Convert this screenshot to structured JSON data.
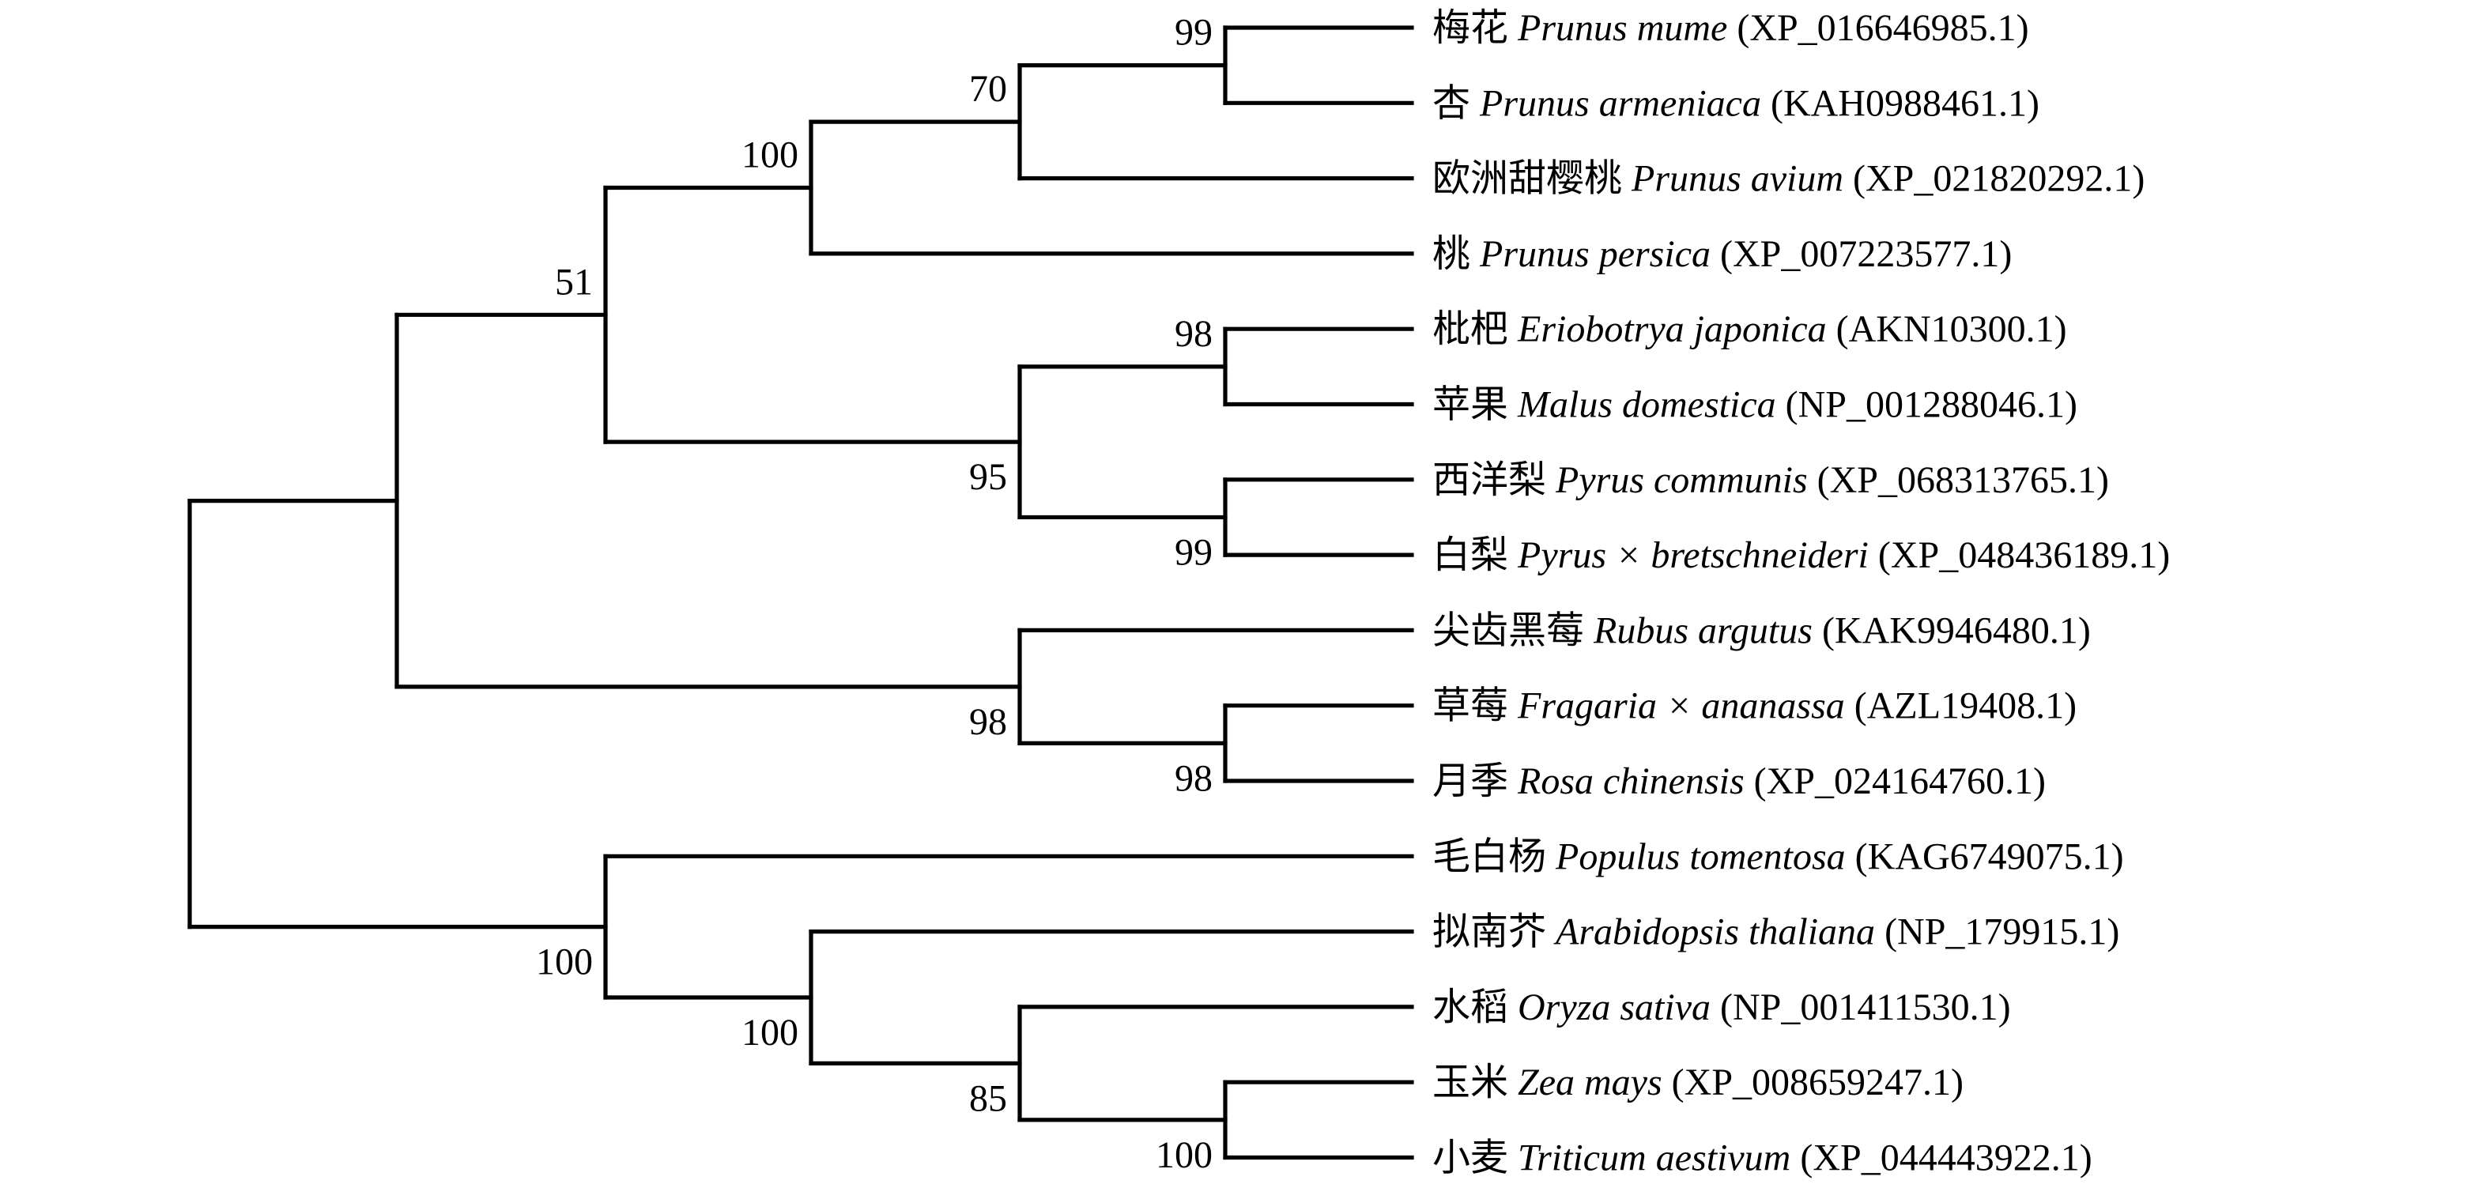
{
  "figure": {
    "type": "phylogenetic_tree",
    "background_color": "#ffffff",
    "line_color": "#000000",
    "text_color": "#000000",
    "taxa": [
      {
        "cn": "梅花",
        "sci": "Prunus mume",
        "acc": "(XP_016646985.1)"
      },
      {
        "cn": "杏",
        "sci": "Prunus armeniaca",
        "acc": "(KAH0988461.1)"
      },
      {
        "cn": "欧洲甜樱桃",
        "sci": "Prunus avium",
        "acc": "(XP_021820292.1)"
      },
      {
        "cn": "桃",
        "sci": "Prunus persica",
        "acc": "(XP_007223577.1)"
      },
      {
        "cn": "枇杷",
        "sci": "Eriobotrya japonica",
        "acc": "(AKN10300.1)"
      },
      {
        "cn": "苹果",
        "sci": "Malus domestica",
        "acc": "(NP_001288046.1)"
      },
      {
        "cn": "西洋梨",
        "sci": "Pyrus communis",
        "acc": "(XP_068313765.1)"
      },
      {
        "cn": "白梨",
        "sci": "Pyrus × bretschneideri",
        "acc": "(XP_048436189.1)"
      },
      {
        "cn": "尖齿黑莓",
        "sci": "Rubus argutus",
        "acc": "(KAK9946480.1)"
      },
      {
        "cn": "草莓",
        "sci": "Fragaria × ananassa",
        "acc": "(AZL19408.1)"
      },
      {
        "cn": "月季",
        "sci": "Rosa chinensis",
        "acc": "(XP_024164760.1)"
      },
      {
        "cn": "毛白杨",
        "sci": "Populus tomentosa",
        "acc": "(KAG6749075.1)"
      },
      {
        "cn": "拟南芥",
        "sci": "Arabidopsis thaliana",
        "acc": "(NP_179915.1)"
      },
      {
        "cn": "水稻",
        "sci": "Oryza sativa",
        "acc": "(NP_001411530.1)"
      },
      {
        "cn": "玉米",
        "sci": "Zea mays",
        "acc": "(XP_008659247.1)"
      },
      {
        "cn": "小麦",
        "sci": "Triticum aestivum",
        "acc": "(XP_044443922.1)"
      }
    ],
    "tree": {
      "children": [
        {
          "children": [
            {
              "support": 51,
              "children": [
                {
                  "support": 100,
                  "children": [
                    {
                      "support": 70,
                      "children": [
                        {
                          "support": 99,
                          "children": [
                            {
                              "leaf": 0
                            },
                            {
                              "leaf": 1
                            }
                          ]
                        },
                        {
                          "leaf": 2
                        }
                      ]
                    },
                    {
                      "leaf": 3
                    }
                  ]
                },
                {
                  "support": 95,
                  "children": [
                    {
                      "support": 98,
                      "children": [
                        {
                          "leaf": 4
                        },
                        {
                          "leaf": 5
                        }
                      ]
                    },
                    {
                      "support": 99,
                      "children": [
                        {
                          "leaf": 6
                        },
                        {
                          "leaf": 7
                        }
                      ]
                    }
                  ]
                }
              ]
            },
            {
              "support": 98,
              "children": [
                {
                  "leaf": 8
                },
                {
                  "support": 98,
                  "children": [
                    {
                      "leaf": 9
                    },
                    {
                      "leaf": 10
                    }
                  ]
                }
              ]
            }
          ]
        },
        {
          "support": 100,
          "children": [
            {
              "leaf": 11
            },
            {
              "support": 100,
              "children": [
                {
                  "leaf": 12
                },
                {
                  "support": 85,
                  "children": [
                    {
                      "leaf": 13
                    },
                    {
                      "support": 100,
                      "children": [
                        {
                          "leaf": 14
                        },
                        {
                          "leaf": 15
                        }
                      ]
                    }
                  ]
                }
              ]
            }
          ]
        }
      ]
    }
  }
}
